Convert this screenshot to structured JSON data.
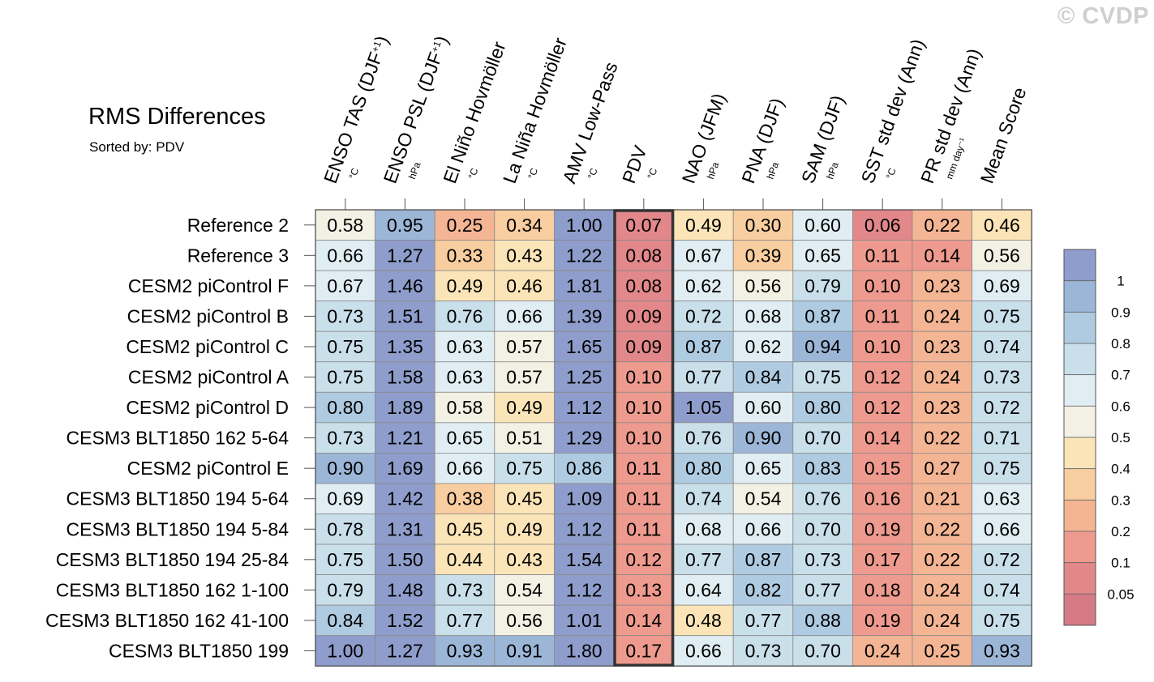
{
  "watermark": "© CVDP",
  "title": "RMS Differences",
  "subtitle": "Sorted by: PDV",
  "chart_data": {
    "type": "heatmap",
    "highlight_column": "PDV",
    "columns": [
      {
        "label": "ENSO TAS (DJF",
        "sup": "+1",
        "close": ")",
        "unit": "°C"
      },
      {
        "label": "ENSO PSL (DJF",
        "sup": "+1",
        "close": ")",
        "unit": "hPa"
      },
      {
        "label": "El Niño Hovmöller",
        "sup": "",
        "close": "",
        "unit": "°C"
      },
      {
        "label": "La Niña Hovmöller",
        "sup": "",
        "close": "",
        "unit": "°C"
      },
      {
        "label": "AMV Low-Pass",
        "sup": "",
        "close": "",
        "unit": "°C"
      },
      {
        "label": "PDV",
        "sup": "",
        "close": "",
        "unit": "°C"
      },
      {
        "label": "NAO (JFM)",
        "sup": "",
        "close": "",
        "unit": "hPa"
      },
      {
        "label": "PNA (DJF)",
        "sup": "",
        "close": "",
        "unit": "hPa"
      },
      {
        "label": "SAM (DJF)",
        "sup": "",
        "close": "",
        "unit": "hPa"
      },
      {
        "label": "SST std dev (Ann)",
        "sup": "",
        "close": "",
        "unit": "°C"
      },
      {
        "label": "PR std dev (Ann)",
        "sup": "",
        "close": "",
        "unit": "mm day⁻¹"
      },
      {
        "label": "Mean Score",
        "sup": "",
        "close": "",
        "unit": ""
      }
    ],
    "rows": [
      {
        "name": "Reference 2",
        "values": [
          "0.58",
          "0.95",
          "0.25",
          "0.34",
          "1.00",
          "0.07",
          "0.49",
          "0.30",
          "0.60",
          "0.06",
          "0.22",
          "0.46"
        ]
      },
      {
        "name": "Reference 3",
        "values": [
          "0.66",
          "1.27",
          "0.33",
          "0.43",
          "1.22",
          "0.08",
          "0.67",
          "0.39",
          "0.65",
          "0.11",
          "0.14",
          "0.56"
        ]
      },
      {
        "name": "CESM2 piControl F",
        "values": [
          "0.67",
          "1.46",
          "0.49",
          "0.46",
          "1.81",
          "0.08",
          "0.62",
          "0.56",
          "0.79",
          "0.10",
          "0.23",
          "0.69"
        ]
      },
      {
        "name": "CESM2 piControl B",
        "values": [
          "0.73",
          "1.51",
          "0.76",
          "0.66",
          "1.39",
          "0.09",
          "0.72",
          "0.68",
          "0.87",
          "0.11",
          "0.24",
          "0.75"
        ]
      },
      {
        "name": "CESM2 piControl C",
        "values": [
          "0.75",
          "1.35",
          "0.63",
          "0.57",
          "1.65",
          "0.09",
          "0.87",
          "0.62",
          "0.94",
          "0.10",
          "0.23",
          "0.74"
        ]
      },
      {
        "name": "CESM2 piControl A",
        "values": [
          "0.75",
          "1.58",
          "0.63",
          "0.57",
          "1.25",
          "0.10",
          "0.77",
          "0.84",
          "0.75",
          "0.12",
          "0.24",
          "0.73"
        ]
      },
      {
        "name": "CESM2 piControl D",
        "values": [
          "0.80",
          "1.89",
          "0.58",
          "0.49",
          "1.12",
          "0.10",
          "1.05",
          "0.60",
          "0.80",
          "0.12",
          "0.23",
          "0.72"
        ]
      },
      {
        "name": "CESM3 BLT1850 162 5-64",
        "values": [
          "0.73",
          "1.21",
          "0.65",
          "0.51",
          "1.29",
          "0.10",
          "0.76",
          "0.90",
          "0.70",
          "0.14",
          "0.22",
          "0.71"
        ]
      },
      {
        "name": "CESM2 piControl E",
        "values": [
          "0.90",
          "1.69",
          "0.66",
          "0.75",
          "0.86",
          "0.11",
          "0.80",
          "0.65",
          "0.83",
          "0.15",
          "0.27",
          "0.75"
        ]
      },
      {
        "name": "CESM3 BLT1850 194 5-64",
        "values": [
          "0.69",
          "1.42",
          "0.38",
          "0.45",
          "1.09",
          "0.11",
          "0.74",
          "0.54",
          "0.76",
          "0.16",
          "0.21",
          "0.63"
        ]
      },
      {
        "name": "CESM3 BLT1850 194 5-84",
        "values": [
          "0.78",
          "1.31",
          "0.45",
          "0.49",
          "1.12",
          "0.11",
          "0.68",
          "0.66",
          "0.70",
          "0.19",
          "0.22",
          "0.66"
        ]
      },
      {
        "name": "CESM3 BLT1850 194 25-84",
        "values": [
          "0.75",
          "1.50",
          "0.44",
          "0.43",
          "1.54",
          "0.12",
          "0.77",
          "0.87",
          "0.73",
          "0.17",
          "0.22",
          "0.72"
        ]
      },
      {
        "name": "CESM3 BLT1850 162 1-100",
        "values": [
          "0.79",
          "1.48",
          "0.73",
          "0.54",
          "1.12",
          "0.13",
          "0.64",
          "0.82",
          "0.77",
          "0.18",
          "0.24",
          "0.74"
        ]
      },
      {
        "name": "CESM3 BLT1850 162 41-100",
        "values": [
          "0.84",
          "1.52",
          "0.77",
          "0.56",
          "1.01",
          "0.14",
          "0.48",
          "0.77",
          "0.88",
          "0.19",
          "0.24",
          "0.75"
        ]
      },
      {
        "name": "CESM3 BLT1850 199",
        "values": [
          "1.00",
          "1.27",
          "0.93",
          "0.91",
          "1.80",
          "0.17",
          "0.66",
          "0.73",
          "0.70",
          "0.24",
          "0.25",
          "0.93"
        ]
      }
    ],
    "colorbar": {
      "levels": [
        "1",
        "0.9",
        "0.8",
        "0.7",
        "0.6",
        "0.5",
        "0.4",
        "0.3",
        "0.2",
        "0.1",
        "0.05"
      ],
      "thresholds": [
        0.05,
        0.1,
        0.2,
        0.3,
        0.4,
        0.5,
        0.6,
        0.7,
        0.8,
        0.9,
        1.0
      ],
      "colors": [
        "#d77a88",
        "#e2878a",
        "#ee9a8e",
        "#f4b594",
        "#f8cd9f",
        "#fbe5b8",
        "#f2f1e4",
        "#e0edf3",
        "#c9dfea",
        "#afcbe1",
        "#9cb6d7",
        "#8e9dcb"
      ]
    }
  }
}
